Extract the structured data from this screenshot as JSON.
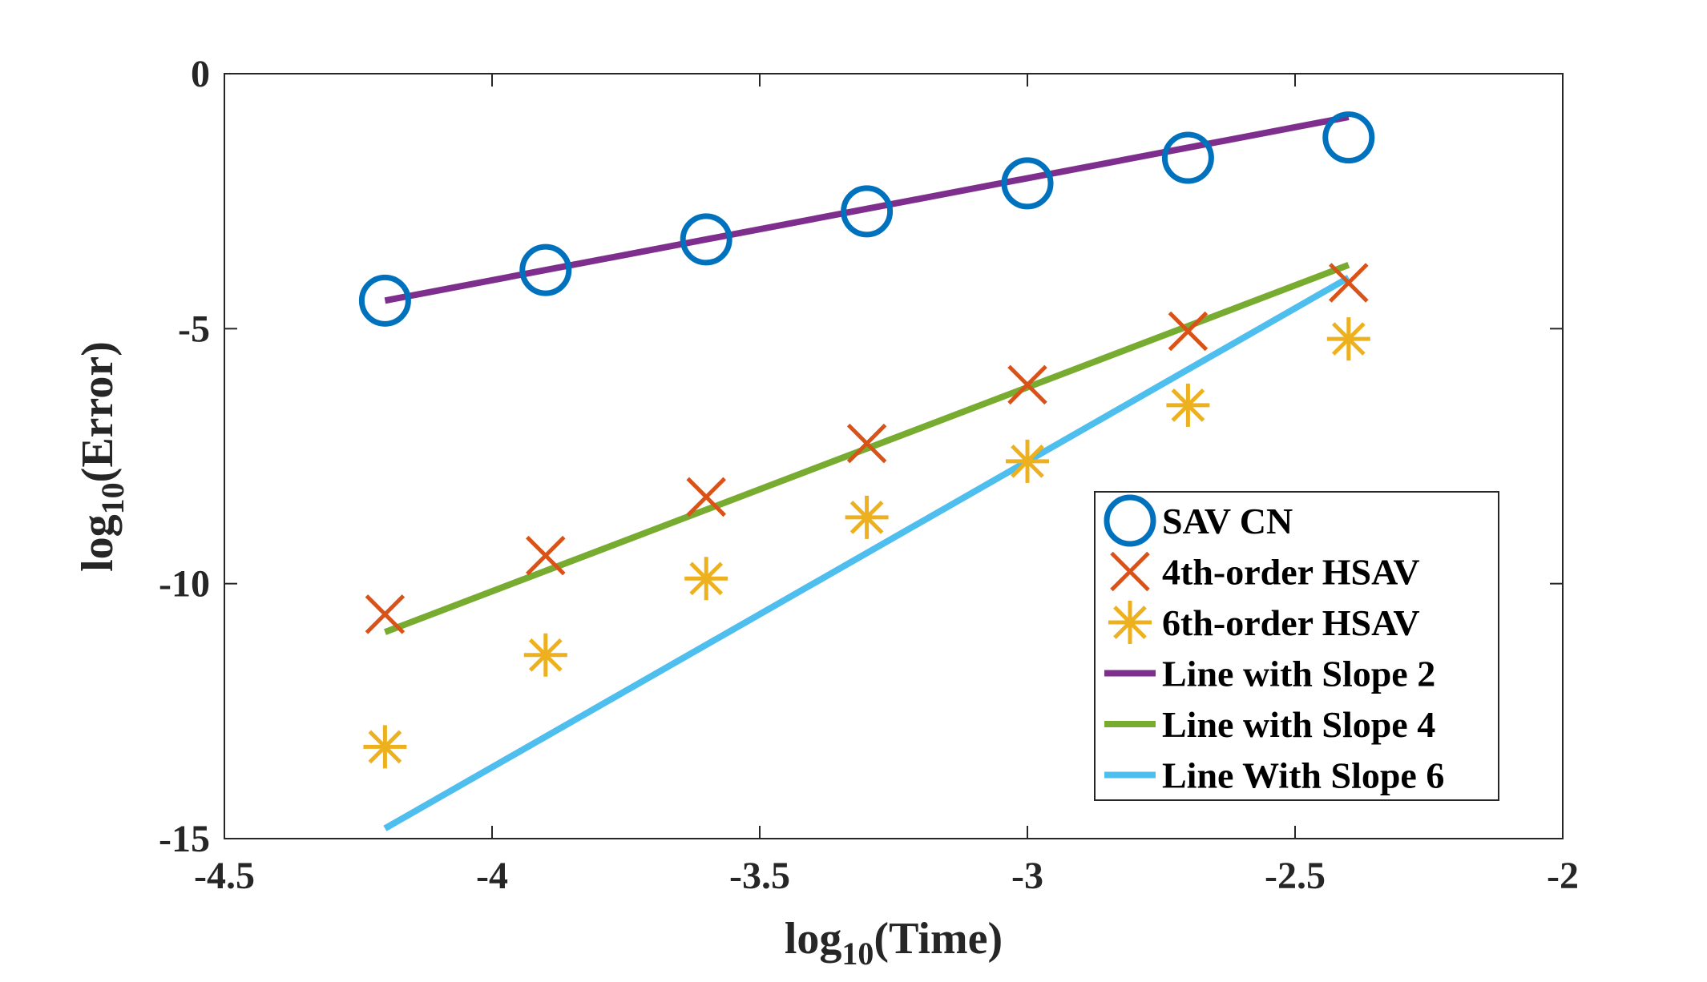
{
  "chart_data": {
    "type": "scatter",
    "title": "",
    "xlabel": {
      "prefix": "log",
      "sub": "10",
      "suffix": "(Time)"
    },
    "ylabel": {
      "prefix": "log",
      "sub": "10",
      "suffix": "(Error)"
    },
    "xlim": [
      -4.5,
      -2
    ],
    "ylim": [
      -15,
      0
    ],
    "xticks": [
      -4.5,
      -4,
      -3.5,
      -3,
      -2.5,
      -2
    ],
    "xtick_labels": [
      "-4.5",
      "-4",
      "-3.5",
      "-3",
      "-2.5",
      "-2"
    ],
    "yticks": [
      0,
      -5,
      -10,
      -15
    ],
    "ytick_labels": [
      "0",
      "-5",
      "-10",
      "-15"
    ],
    "grid": false,
    "legend_position": "bottom-right",
    "colors": {
      "sav_cn": "#0072BD",
      "hsav4": "#D95319",
      "hsav6": "#EDB120",
      "slope2": "#7E2F8E",
      "slope4": "#77AC30",
      "slope6": "#4DBEEE",
      "axes": "#262626"
    },
    "series": [
      {
        "name": "SAV CN",
        "kind": "marker",
        "marker": "circle",
        "color_key": "sav_cn",
        "x": [
          -4.2,
          -3.9,
          -3.6,
          -3.3,
          -3.0,
          -2.7,
          -2.4
        ],
        "y": [
          -4.45,
          -3.85,
          -3.25,
          -2.7,
          -2.15,
          -1.65,
          -1.25
        ]
      },
      {
        "name": "4th-order HSAV",
        "kind": "marker",
        "marker": "x",
        "color_key": "hsav4",
        "x": [
          -4.2,
          -3.9,
          -3.6,
          -3.3,
          -3.0,
          -2.7,
          -2.4
        ],
        "y": [
          -10.6,
          -9.45,
          -8.3,
          -7.25,
          -6.1,
          -5.05,
          -4.1
        ]
      },
      {
        "name": "6th-order HSAV",
        "kind": "marker",
        "marker": "asterisk",
        "color_key": "hsav6",
        "x": [
          -4.2,
          -3.9,
          -3.6,
          -3.3,
          -3.0,
          -2.7,
          -2.4
        ],
        "y": [
          -13.2,
          -11.4,
          -9.9,
          -8.7,
          -7.6,
          -6.5,
          -5.2
        ]
      },
      {
        "name": "Line with Slope 2",
        "kind": "line",
        "color_key": "slope2",
        "x": [
          -4.2,
          -2.4
        ],
        "y": [
          -4.45,
          -0.85
        ]
      },
      {
        "name": "Line with Slope 4",
        "kind": "line",
        "color_key": "slope4",
        "x": [
          -4.2,
          -2.4
        ],
        "y": [
          -10.95,
          -3.75
        ]
      },
      {
        "name": "Line With Slope 6",
        "kind": "line",
        "color_key": "slope6",
        "x": [
          -4.2,
          -2.4
        ],
        "y": [
          -14.8,
          -4.0
        ]
      }
    ]
  }
}
